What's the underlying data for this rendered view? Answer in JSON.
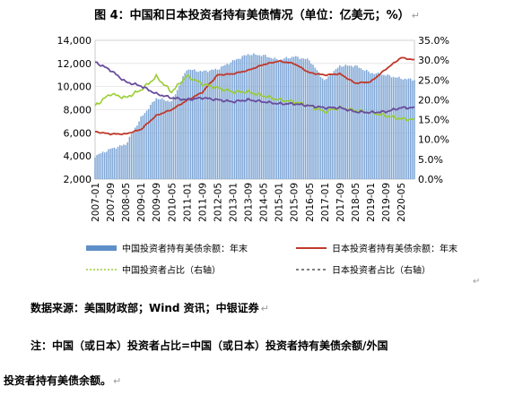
{
  "title": "图 4：中国和日本投资者持有美债情况（单位：亿美元；%）",
  "para_mark": "↵",
  "source": "数据来源：美国财政部；Wind 资讯；中银证券",
  "note_line1": "注：中国（或日本）投资者占比=中国（或日本）投资者持有美债余额/外国",
  "note_line2": "投资者持有美债余额。",
  "colors": {
    "bar": "#7ea6d6",
    "bar_edge": "#5f8fc8",
    "japan_line": "#c0392b",
    "china_share": "#9acd32",
    "japan_share": "#6a4c9c",
    "plot_bg": "#ffffff",
    "grid": "#d9d9d9"
  },
  "chart_data": {
    "type": "bar",
    "x_tick_labels": [
      "2007-01",
      "2007-09",
      "2008-05",
      "2009-01",
      "2009-09",
      "2010-05",
      "2011-01",
      "2011-09",
      "2012-05",
      "2013-01",
      "2013-09",
      "2014-05",
      "2015-01",
      "2015-09",
      "2016-05",
      "2017-01",
      "2017-09",
      "2018-05",
      "2019-01",
      "2019-09",
      "2020-05"
    ],
    "y_left": {
      "min": 2000,
      "max": 14000,
      "step": 2000,
      "ticks": [
        "2,000",
        "4,000",
        "6,000",
        "8,000",
        "10,000",
        "12,000",
        "14,000"
      ]
    },
    "y_right": {
      "min": 0,
      "max": 35,
      "step": 5,
      "ticks": [
        "0.0%",
        "5.0%",
        "10.0%",
        "15.0%",
        "20.0%",
        "25.0%",
        "30.0%",
        "35.0%"
      ]
    },
    "legend": [
      {
        "label": "中国投资者持有美债余额：年末",
        "style": "bar"
      },
      {
        "label": "日本投资者持有美债余额：年末",
        "style": "line"
      },
      {
        "label": "中国投资者占比（右轴）",
        "style": "dashed-green"
      },
      {
        "label": "日本投资者占比（右轴）",
        "style": "dashed-black"
      }
    ],
    "series": [
      {
        "name": "中国投资者持有美债余额：年末",
        "axis": "left",
        "anchors": [
          [
            "2007-01",
            4000
          ],
          [
            "2007-09",
            4600
          ],
          [
            "2008-05",
            5000
          ],
          [
            "2009-01",
            7300
          ],
          [
            "2009-09",
            9000
          ],
          [
            "2010-05",
            8700
          ],
          [
            "2011-01",
            11500
          ],
          [
            "2011-09",
            11300
          ],
          [
            "2012-05",
            11500
          ],
          [
            "2013-01",
            12200
          ],
          [
            "2013-09",
            12800
          ],
          [
            "2014-05",
            12700
          ],
          [
            "2015-01",
            12300
          ],
          [
            "2015-09",
            12600
          ],
          [
            "2016-05",
            12300
          ],
          [
            "2017-01",
            10500
          ],
          [
            "2017-09",
            11800
          ],
          [
            "2018-05",
            11800
          ],
          [
            "2019-01",
            11200
          ],
          [
            "2019-09",
            11000
          ],
          [
            "2020-05",
            10700
          ],
          [
            "2020-12",
            10600
          ]
        ]
      },
      {
        "name": "日本投资者持有美债余额：年末",
        "axis": "left",
        "anchors": [
          [
            "2007-01",
            6100
          ],
          [
            "2007-09",
            5900
          ],
          [
            "2008-05",
            5900
          ],
          [
            "2009-01",
            6300
          ],
          [
            "2009-09",
            7500
          ],
          [
            "2010-05",
            8000
          ],
          [
            "2011-01",
            8800
          ],
          [
            "2011-09",
            9500
          ],
          [
            "2012-05",
            11000
          ],
          [
            "2013-01",
            11100
          ],
          [
            "2013-09",
            11400
          ],
          [
            "2014-05",
            11900
          ],
          [
            "2015-01",
            12200
          ],
          [
            "2015-09",
            12000
          ],
          [
            "2016-05",
            11200
          ],
          [
            "2017-01",
            11000
          ],
          [
            "2017-09",
            11100
          ],
          [
            "2018-05",
            10300
          ],
          [
            "2019-01",
            10400
          ],
          [
            "2019-09",
            11500
          ],
          [
            "2020-05",
            12500
          ],
          [
            "2020-12",
            12300
          ]
        ]
      },
      {
        "name": "中国投资者占比（右轴）",
        "axis": "right",
        "anchors": [
          [
            "2007-01",
            18.5
          ],
          [
            "2007-09",
            21.5
          ],
          [
            "2008-05",
            20.5
          ],
          [
            "2009-01",
            22.5
          ],
          [
            "2009-09",
            25.8
          ],
          [
            "2010-05",
            22.0
          ],
          [
            "2011-01",
            26.0
          ],
          [
            "2011-09",
            24.0
          ],
          [
            "2012-05",
            23.0
          ],
          [
            "2013-01",
            22.0
          ],
          [
            "2013-09",
            22.0
          ],
          [
            "2014-05",
            21.0
          ],
          [
            "2015-01",
            20.0
          ],
          [
            "2015-09",
            19.5
          ],
          [
            "2016-05",
            18.5
          ],
          [
            "2017-01",
            17.0
          ],
          [
            "2017-09",
            18.0
          ],
          [
            "2018-05",
            17.3
          ],
          [
            "2019-01",
            16.8
          ],
          [
            "2019-09",
            16.0
          ],
          [
            "2020-05",
            15.2
          ],
          [
            "2020-12",
            15.0
          ]
        ]
      },
      {
        "name": "日本投资者占比（右轴）",
        "axis": "right",
        "anchors": [
          [
            "2007-01",
            29.5
          ],
          [
            "2007-09",
            27.5
          ],
          [
            "2008-05",
            24.5
          ],
          [
            "2009-01",
            23.5
          ],
          [
            "2009-09",
            21.5
          ],
          [
            "2010-05",
            20.5
          ],
          [
            "2011-01",
            20.0
          ],
          [
            "2011-09",
            20.5
          ],
          [
            "2012-05",
            20.0
          ],
          [
            "2013-01",
            19.5
          ],
          [
            "2013-09",
            20.0
          ],
          [
            "2014-05",
            19.5
          ],
          [
            "2015-01",
            19.0
          ],
          [
            "2015-09",
            19.0
          ],
          [
            "2016-05",
            18.5
          ],
          [
            "2017-01",
            18.0
          ],
          [
            "2017-09",
            18.0
          ],
          [
            "2018-05",
            17.0
          ],
          [
            "2019-01",
            16.8
          ],
          [
            "2019-09",
            17.0
          ],
          [
            "2020-05",
            18.0
          ],
          [
            "2020-12",
            18.0
          ]
        ]
      }
    ]
  }
}
